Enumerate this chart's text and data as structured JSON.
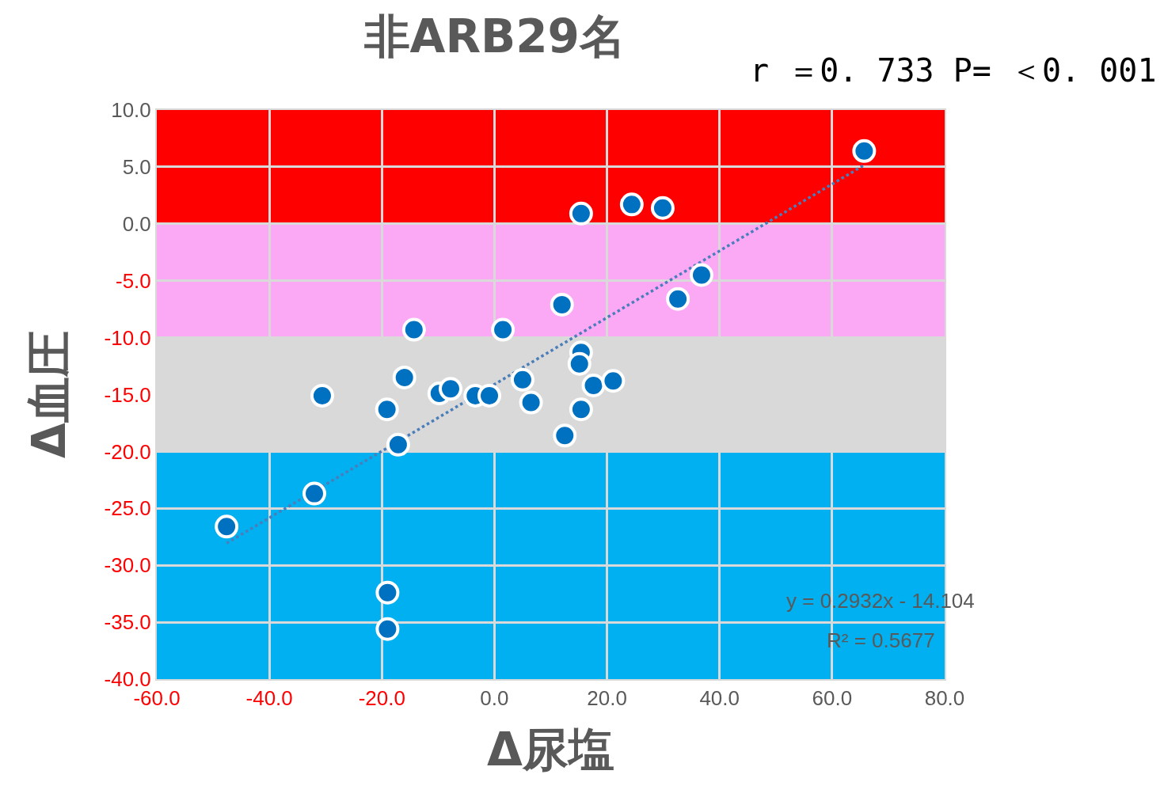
{
  "chart_data": {
    "type": "scatter",
    "title": "非ARB29名",
    "xlabel": "Δ尿塩",
    "ylabel": "Δ血圧",
    "annotations": [
      "r ＝0. 733 P= ＜0. 001",
      "y = 0.2932x - 14.104",
      "R² = 0.5677"
    ],
    "series": [
      {
        "type": "scatter",
        "color": "#0070c0",
        "marker": "circle",
        "x": [
          65.7,
          15.4,
          24.4,
          29.9,
          36.8,
          32.6,
          12.0,
          -14.3,
          1.5,
          15.4,
          15.1,
          -16.0,
          -30.6,
          -9.8,
          -7.8,
          -3.4,
          -0.9,
          5.0,
          6.5,
          17.6,
          21.1,
          15.4,
          12.5,
          -19.1,
          -17.1,
          -32.0,
          -47.6,
          -19.0,
          -19.0
        ],
        "values": [
          6.4,
          0.9,
          1.7,
          1.4,
          -4.5,
          -6.6,
          -7.1,
          -9.3,
          -9.3,
          -11.3,
          -12.3,
          -13.5,
          -15.1,
          -14.9,
          -14.5,
          -15.1,
          -15.1,
          -13.7,
          -15.7,
          -14.2,
          -13.8,
          -16.3,
          -18.6,
          -16.3,
          -19.4,
          -23.7,
          -26.6,
          -32.4,
          -35.6
        ]
      },
      {
        "type": "line",
        "color": "#4a7ebb",
        "line_style": "dotted",
        "marker": "none",
        "x": [
          -47.6,
          65.7
        ],
        "values": [
          -28.06,
          5.16
        ]
      }
    ],
    "bands": [
      {
        "axis": "y",
        "from": 0,
        "to": 10,
        "color": "#ff0000"
      },
      {
        "axis": "y",
        "from": -10,
        "to": 0,
        "color": "#fba8f5"
      },
      {
        "axis": "y",
        "from": -20,
        "to": -10,
        "color": "#d9d9d9"
      },
      {
        "axis": "y",
        "from": -40,
        "to": -20,
        "color": "#00b0f0"
      }
    ],
    "xlim": [
      -60,
      80
    ],
    "ylim": [
      -40,
      10
    ],
    "xticks": [
      {
        "value": -60,
        "label": "-60.0"
      },
      {
        "value": -40,
        "label": "-40.0"
      },
      {
        "value": -20,
        "label": "-20.0"
      },
      {
        "value": 0,
        "label": "0.0"
      },
      {
        "value": 20,
        "label": "20.0"
      },
      {
        "value": 40,
        "label": "40.0"
      },
      {
        "value": 60,
        "label": "60.0"
      },
      {
        "value": 80,
        "label": "80.0"
      }
    ],
    "yticks": [
      {
        "value": -40,
        "label": "-40.0"
      },
      {
        "value": -35,
        "label": "-35.0"
      },
      {
        "value": -30,
        "label": "-30.0"
      },
      {
        "value": -25,
        "label": "-25.0"
      },
      {
        "value": -20,
        "label": "-20.0"
      },
      {
        "value": -15,
        "label": "-15.0"
      },
      {
        "value": -10,
        "label": "-10.0"
      },
      {
        "value": -5,
        "label": "-5.0"
      },
      {
        "value": 0,
        "label": "0.0"
      },
      {
        "value": 5,
        "label": "5.0"
      },
      {
        "value": 10,
        "label": "10.0"
      }
    ],
    "grid": true
  }
}
